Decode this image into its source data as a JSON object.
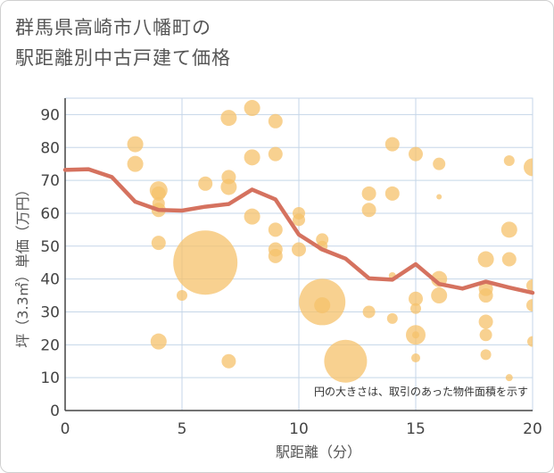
{
  "title_line1": "群馬県高崎市八幡町の",
  "title_line2": "駅距離別中古戸建て価格",
  "note": "円の大きさは、取引のあった物件面積を示す",
  "colors": {
    "bubble": "#f5c26b",
    "line": "#d5725f",
    "grid": "#c5d6e8",
    "background": "#ffffff"
  },
  "chart_data": {
    "type": "scatter",
    "xlabel": "駅距離（分）",
    "ylabel": "坪（3.3㎡）単価（万円）",
    "xlim": [
      0,
      20
    ],
    "ylim": [
      0,
      95
    ],
    "xticks": [
      "0",
      "5",
      "10",
      "15",
      "20"
    ],
    "yticks": [
      "0",
      "10",
      "20",
      "30",
      "40",
      "50",
      "60",
      "70",
      "80",
      "90"
    ],
    "bubbles": [
      {
        "x": 3,
        "y": 81,
        "s": 9
      },
      {
        "x": 3,
        "y": 75,
        "s": 9
      },
      {
        "x": 4,
        "y": 67,
        "s": 10
      },
      {
        "x": 4,
        "y": 66,
        "s": 8
      },
      {
        "x": 4,
        "y": 63,
        "s": 7
      },
      {
        "x": 4,
        "y": 61,
        "s": 8
      },
      {
        "x": 4,
        "y": 51,
        "s": 8
      },
      {
        "x": 4,
        "y": 21,
        "s": 9
      },
      {
        "x": 5,
        "y": 35,
        "s": 6
      },
      {
        "x": 6,
        "y": 45,
        "s": 36
      },
      {
        "x": 6,
        "y": 69,
        "s": 8
      },
      {
        "x": 7,
        "y": 89,
        "s": 9
      },
      {
        "x": 7,
        "y": 71,
        "s": 8
      },
      {
        "x": 7,
        "y": 68,
        "s": 9
      },
      {
        "x": 7,
        "y": 15,
        "s": 8
      },
      {
        "x": 8,
        "y": 92,
        "s": 9
      },
      {
        "x": 8,
        "y": 77,
        "s": 9
      },
      {
        "x": 8,
        "y": 59,
        "s": 9
      },
      {
        "x": 9,
        "y": 88,
        "s": 8
      },
      {
        "x": 9,
        "y": 78,
        "s": 8
      },
      {
        "x": 9,
        "y": 55,
        "s": 8
      },
      {
        "x": 9,
        "y": 49,
        "s": 8
      },
      {
        "x": 9,
        "y": 47,
        "s": 8
      },
      {
        "x": 10,
        "y": 60,
        "s": 7
      },
      {
        "x": 10,
        "y": 58,
        "s": 7
      },
      {
        "x": 10,
        "y": 49,
        "s": 8
      },
      {
        "x": 11,
        "y": 52,
        "s": 7
      },
      {
        "x": 11,
        "y": 50,
        "s": 6
      },
      {
        "x": 11,
        "y": 33,
        "s": 26
      },
      {
        "x": 11,
        "y": 32,
        "s": 9
      },
      {
        "x": 12,
        "y": 15,
        "s": 24
      },
      {
        "x": 13,
        "y": 66,
        "s": 8
      },
      {
        "x": 13,
        "y": 61,
        "s": 8
      },
      {
        "x": 13,
        "y": 30,
        "s": 7
      },
      {
        "x": 14,
        "y": 81,
        "s": 8
      },
      {
        "x": 14,
        "y": 66,
        "s": 8
      },
      {
        "x": 14,
        "y": 41,
        "s": 4
      },
      {
        "x": 14,
        "y": 28,
        "s": 6
      },
      {
        "x": 15,
        "y": 78,
        "s": 8
      },
      {
        "x": 15,
        "y": 34,
        "s": 8
      },
      {
        "x": 15,
        "y": 31,
        "s": 6
      },
      {
        "x": 15,
        "y": 23,
        "s": 11
      },
      {
        "x": 15,
        "y": 23,
        "s": 4
      },
      {
        "x": 15,
        "y": 16,
        "s": 5
      },
      {
        "x": 16,
        "y": 75,
        "s": 7
      },
      {
        "x": 16,
        "y": 65,
        "s": 3
      },
      {
        "x": 16,
        "y": 40,
        "s": 9
      },
      {
        "x": 16,
        "y": 35,
        "s": 9
      },
      {
        "x": 18,
        "y": 46,
        "s": 9
      },
      {
        "x": 18,
        "y": 37,
        "s": 8
      },
      {
        "x": 18,
        "y": 35,
        "s": 8
      },
      {
        "x": 18,
        "y": 27,
        "s": 8
      },
      {
        "x": 18,
        "y": 23,
        "s": 7
      },
      {
        "x": 18,
        "y": 17,
        "s": 6
      },
      {
        "x": 19,
        "y": 76,
        "s": 6
      },
      {
        "x": 19,
        "y": 55,
        "s": 9
      },
      {
        "x": 19,
        "y": 46,
        "s": 8
      },
      {
        "x": 19,
        "y": 10,
        "s": 4
      },
      {
        "x": 20,
        "y": 74,
        "s": 10
      },
      {
        "x": 20,
        "y": 38,
        "s": 7
      },
      {
        "x": 20,
        "y": 32,
        "s": 7
      },
      {
        "x": 20,
        "y": 21,
        "s": 6
      }
    ],
    "line": {
      "x": [
        0,
        1,
        2,
        3,
        4,
        5,
        6,
        7,
        8,
        9,
        10,
        11,
        12,
        13,
        14,
        15,
        16,
        17,
        18,
        19,
        20
      ],
      "y": [
        73.2,
        73.4,
        71,
        63.5,
        61,
        60.8,
        62,
        62.8,
        67.2,
        64.2,
        53.5,
        49,
        46.2,
        40.2,
        39.8,
        44.5,
        38.5,
        37.1,
        39.2,
        37.4,
        35.8
      ]
    }
  }
}
